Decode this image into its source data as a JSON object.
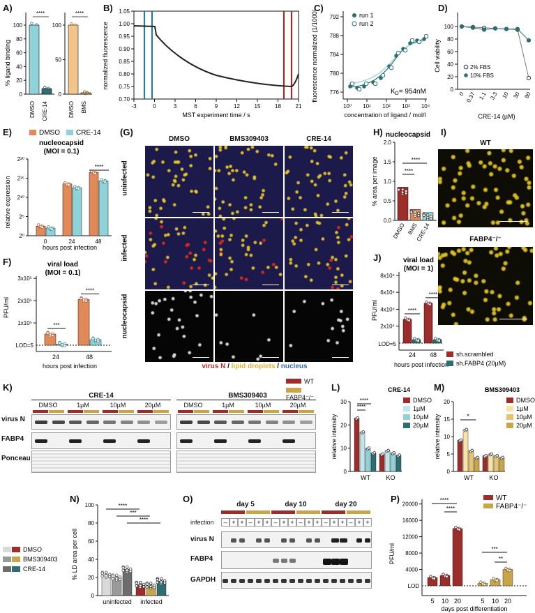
{
  "panel_labels": {
    "A": "A)",
    "B": "B)",
    "C": "C)",
    "D": "D)",
    "E": "E)",
    "F": "F)",
    "G": "(G)",
    "H": "H)",
    "I": "I)",
    "J": "J)",
    "K": "K)",
    "L": "L)",
    "M": "M)",
    "N": "N)",
    "O": "O)",
    "P": "P)"
  },
  "colors": {
    "wt": "#9b2d2a",
    "ko": "#c9a54a",
    "cyan": "#8ed3d8",
    "peach": "#f2c58a",
    "orange": "#e2895a",
    "teal": "#2e6e73",
    "lightgrey": "#d9d9d9",
    "grey": "#9a9a9a",
    "darkgrey": "#6d6d6d"
  },
  "A": {
    "ylabel": "% ligand binding",
    "left": {
      "ticks": [
        "0",
        "20",
        "40",
        "60",
        "80",
        "100"
      ],
      "cats": [
        "DMSO",
        "CRE-14"
      ],
      "values": [
        100,
        8
      ],
      "sig": "****"
    },
    "right": {
      "ticks": [
        "0",
        "50",
        "100"
      ],
      "cats": [
        "DMSO",
        "BMS"
      ],
      "values": [
        100,
        2
      ],
      "sig": "****"
    }
  },
  "B": {
    "ylabel": "normalized fluorescence",
    "xlabel": "MST experiment time / s",
    "yticks": [
      "1.05",
      "1.00",
      "0.95",
      "0.90",
      "0.85",
      "0.80",
      "0.75",
      "0.70"
    ],
    "xticks": [
      "-3",
      "0",
      "3",
      "6",
      "9",
      "12",
      "15",
      "18",
      "21"
    ]
  },
  "C": {
    "ylabel": "fluorescence normalized (1/1000)",
    "xlabel": "concentration of ligand / mol/l",
    "yticks": [
      "776",
      "780",
      "784",
      "788",
      "792"
    ],
    "xticks": [
      "10⁰",
      "10¹",
      "10²",
      "10³",
      "10⁴"
    ],
    "legend": [
      "run 1",
      "run 2"
    ],
    "kd": "K",
    "kd_sub": "D",
    "kd_val": "= 954nM"
  },
  "D": {
    "ylabel": "Cell viability",
    "xlabel": "CRE-14 (µM)",
    "yticks": [
      "0",
      "20",
      "40",
      "60",
      "80",
      "100"
    ],
    "xticks": [
      "0",
      "0.37",
      "1.1",
      "3.3",
      "10",
      "30",
      "90"
    ],
    "legend": [
      "2% FBS",
      "10% FBS"
    ],
    "series": [
      {
        "name": "2% FBS",
        "values": [
          100,
          99,
          98,
          97,
          96,
          95,
          18
        ]
      },
      {
        "name": "10% FBS",
        "values": [
          100,
          98,
          95,
          97,
          96,
          96,
          78
        ]
      }
    ]
  },
  "E": {
    "legend": [
      "DMSO",
      "CRE-14"
    ],
    "title": "nucleocapsid",
    "subtitle": "(MOI = 0.1)",
    "ylabel": "relative expression",
    "xlabel": "hours post infection",
    "yticks": [
      "2⁰",
      "2⁵",
      "2¹⁰",
      "2¹⁵",
      "2²⁰"
    ],
    "cats": [
      "0",
      "24",
      "48"
    ],
    "dmso": [
      2.5,
      13.5,
      16.5
    ],
    "cre": [
      2,
      12.5,
      14.3
    ],
    "sig": "****"
  },
  "F": {
    "title": "viral load",
    "subtitle": "(MOI = 0.1)",
    "ylabel": "PFU/ml",
    "xlabel": "hours post infection",
    "yticks": [
      "1x10⁵",
      "2x10⁵",
      "3x10⁵"
    ],
    "lod": "LOD=5",
    "cats": [
      "24",
      "48"
    ],
    "dmso": [
      50000,
      205000
    ],
    "cre": [
      5000,
      25000
    ],
    "sig": [
      "***",
      "****"
    ]
  },
  "G": {
    "cols": [
      "DMSO",
      "BMS309403",
      "CRE-14"
    ],
    "rows": [
      "uninfected",
      "infected",
      "nucleocapsid"
    ],
    "legend_virus": "virus N",
    "legend_sep1": " / ",
    "legend_lipid": "lipid droplets",
    "legend_sep2": " / ",
    "legend_nucleus": "nucleus",
    "scale": "100 µm"
  },
  "H": {
    "title": "nucleocapsid",
    "ylabel": "% area per image",
    "yticks": [
      "0.0",
      "0.5",
      "1.0",
      "1.5",
      "2.0"
    ],
    "cats": [
      "DMSO",
      "BMS",
      "CRE-14"
    ],
    "values": [
      0.85,
      0.28,
      0.2
    ],
    "sig": [
      "****",
      "****"
    ]
  },
  "I": {
    "wt": "WT",
    "ko": "FABP4⁻/⁻",
    "scale": "100 µm"
  },
  "J": {
    "title": "viral load",
    "subtitle": "(MOI = 1)",
    "ylabel": "PFU/ml",
    "xlabel": "hours post infection",
    "yticks": [
      "2x10⁴",
      "4x10⁴",
      "6x10⁴",
      "8x10⁴"
    ],
    "lod": "LOD=5",
    "cats": [
      "24",
      "48"
    ],
    "dmso": [
      28000,
      47000
    ],
    "cre": [
      4000,
      4000
    ],
    "sig": [
      "****",
      "****"
    ],
    "legend": [
      "sh.scrambled",
      "sh.FABP4 (20µM)"
    ]
  },
  "K": {
    "left_title": "CRE-14",
    "right_title": "BMS309403",
    "doses": [
      "DMSO",
      "1µM",
      "10µM",
      "20µM"
    ],
    "rows": [
      "virus N",
      "FABP4",
      "Ponceau"
    ],
    "legend": [
      "WT",
      "FABP4⁻/⁻"
    ]
  },
  "L": {
    "title": "CRE-14",
    "ylabel": "relative intensity",
    "yticks": [
      "0",
      "10",
      "20",
      "30"
    ],
    "cats": [
      "WT",
      "KO"
    ],
    "legend": [
      "DMSO",
      "1µM",
      "10µM",
      "20µM"
    ],
    "wt": [
      23,
      17,
      10,
      8
    ],
    "ko": [
      7.5,
      9,
      8,
      7
    ],
    "sig": [
      "****",
      "****"
    ]
  },
  "M": {
    "title": "BMS309403",
    "ylabel": "relative intensity",
    "yticks": [
      "0",
      "5",
      "10",
      "15",
      "20"
    ],
    "cats": [
      "WT",
      "KO"
    ],
    "legend": [
      "DMSO",
      "1µM",
      "10µM",
      "20µM"
    ],
    "wt": [
      9,
      12,
      6,
      4
    ],
    "ko": [
      4.5,
      5,
      4.5,
      4
    ],
    "sig": "*"
  },
  "N": {
    "legend": [
      "DMSO",
      "BMS309403",
      "CRE-14"
    ],
    "ylabel": "% LD area per cell",
    "yticks": [
      "0",
      "20",
      "40",
      "60",
      "80",
      "100"
    ],
    "cats": [
      "uninfected",
      "infected"
    ],
    "uninf": [
      23,
      20,
      29
    ],
    "inf": [
      12,
      11,
      16
    ],
    "sig": [
      "****",
      "***",
      "****"
    ]
  },
  "O": {
    "days": [
      "day 5",
      "day 10",
      "day 20"
    ],
    "infection": "infection",
    "signs": [
      "–",
      "+",
      "+",
      "–",
      "+",
      "+",
      "–",
      "+",
      "+",
      "–",
      "+",
      "+",
      "–",
      "+",
      "+",
      "–",
      "+",
      "+"
    ],
    "rows": [
      "virus N",
      "FABP4",
      "GAPDH"
    ]
  },
  "P": {
    "legend": [
      "WT",
      "FABP4⁻/⁻"
    ],
    "ylabel": "PFU/ml",
    "xlabel": "days post differentiation",
    "yticks": [
      "4000",
      "8000",
      "12000",
      "16000",
      "20000"
    ],
    "lod": "LOD",
    "cats": [
      "5",
      "10",
      "20",
      "5",
      "10",
      "20"
    ],
    "wt": [
      2000,
      2500,
      14000
    ],
    "ko": [
      600,
      1500,
      4000
    ],
    "sig": [
      "****",
      "****",
      "***",
      "**"
    ]
  }
}
